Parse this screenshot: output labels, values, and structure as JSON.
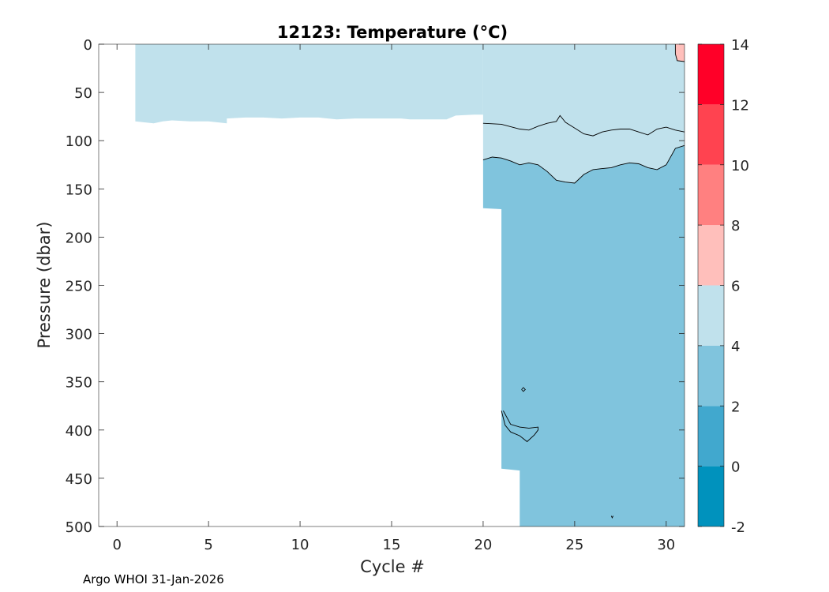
{
  "chart_data": {
    "type": "heatmap",
    "title": "12123:  Temperature (°C)",
    "xlabel": "Cycle #",
    "ylabel": "Pressure (dbar)",
    "xlim": [
      -1,
      31
    ],
    "ylim": [
      0,
      500
    ],
    "y_reversed": true,
    "xticks": [
      0,
      5,
      10,
      15,
      20,
      25,
      30
    ],
    "yticks": [
      0,
      50,
      100,
      150,
      200,
      250,
      300,
      350,
      400,
      450,
      500
    ],
    "colorbar": {
      "ticks": [
        -2,
        0,
        2,
        4,
        6,
        8,
        10,
        12,
        14
      ],
      "levels": [
        {
          "from": -2,
          "to": 0,
          "color": "#0092BD"
        },
        {
          "from": 0,
          "to": 2,
          "color": "#41A8CE"
        },
        {
          "from": 2,
          "to": 4,
          "color": "#80C4DD"
        },
        {
          "from": 4,
          "to": 6,
          "color": "#C0E1EC"
        },
        {
          "from": 6,
          "to": 8,
          "color": "#FFBFBB"
        },
        {
          "from": 8,
          "to": 10,
          "color": "#FF8080"
        },
        {
          "from": 10,
          "to": 12,
          "color": "#FF4350"
        },
        {
          "from": 12,
          "to": 14,
          "color": "#FF0028"
        }
      ]
    },
    "regions": [
      {
        "name": "4-6 band (cycles 1-20)",
        "color": "#C0E1EC",
        "outline": [
          [
            1,
            0
          ],
          [
            20,
            0
          ],
          [
            20,
            73
          ],
          [
            19.5,
            73
          ],
          [
            18.5,
            74
          ],
          [
            18,
            78
          ],
          [
            16,
            78
          ],
          [
            15.5,
            77
          ],
          [
            13,
            77
          ],
          [
            12,
            78
          ],
          [
            11,
            76
          ],
          [
            10,
            76
          ],
          [
            9,
            77
          ],
          [
            8,
            76
          ],
          [
            7,
            76
          ],
          [
            6,
            77
          ],
          [
            6,
            82
          ],
          [
            5,
            80
          ],
          [
            4,
            80
          ],
          [
            3,
            79
          ],
          [
            2.5,
            80
          ],
          [
            2,
            82
          ],
          [
            1,
            80
          ]
        ]
      },
      {
        "name": "4-6 band (cycles 20-31)",
        "color": "#C0E1EC",
        "outline": [
          [
            20,
            0
          ],
          [
            31,
            0
          ],
          [
            31,
            105
          ],
          [
            30.5,
            108
          ],
          [
            30,
            125
          ],
          [
            29.5,
            130
          ],
          [
            29,
            128
          ],
          [
            28.5,
            124
          ],
          [
            28,
            123
          ],
          [
            27.5,
            125
          ],
          [
            27,
            128
          ],
          [
            26.5,
            129
          ],
          [
            26,
            130
          ],
          [
            25.5,
            135
          ],
          [
            25,
            144
          ],
          [
            24.5,
            143
          ],
          [
            24,
            141
          ],
          [
            23.5,
            132
          ],
          [
            23,
            125
          ],
          [
            22.5,
            123
          ],
          [
            22,
            125
          ],
          [
            21.5,
            121
          ],
          [
            21,
            118
          ],
          [
            20.5,
            117
          ],
          [
            20,
            120
          ]
        ]
      },
      {
        "name": "2-4 band (cycles 20-31)",
        "color": "#80C4DD",
        "outline": [
          [
            20,
            120
          ],
          [
            20.5,
            117
          ],
          [
            21,
            118
          ],
          [
            21.5,
            121
          ],
          [
            22,
            125
          ],
          [
            22.5,
            123
          ],
          [
            23,
            125
          ],
          [
            23.5,
            132
          ],
          [
            24,
            141
          ],
          [
            24.5,
            143
          ],
          [
            25,
            144
          ],
          [
            25.5,
            135
          ],
          [
            26,
            130
          ],
          [
            26.5,
            129
          ],
          [
            27,
            128
          ],
          [
            27.5,
            125
          ],
          [
            28,
            123
          ],
          [
            28.5,
            124
          ],
          [
            29,
            128
          ],
          [
            29.5,
            130
          ],
          [
            30,
            125
          ],
          [
            30.5,
            108
          ],
          [
            31,
            105
          ],
          [
            31,
            500
          ],
          [
            22,
            500
          ],
          [
            22,
            442
          ],
          [
            21,
            440
          ],
          [
            21,
            171
          ],
          [
            20,
            170
          ]
        ]
      },
      {
        "name": "6-8 band (top right)",
        "color": "#FFBFBB",
        "outline": [
          [
            30.5,
            0
          ],
          [
            31,
            0
          ],
          [
            31,
            18
          ],
          [
            30.6,
            17
          ],
          [
            30.5,
            10
          ]
        ]
      }
    ],
    "contours": [
      {
        "level": 6,
        "points": [
          [
            30.5,
            0
          ],
          [
            30.5,
            10
          ],
          [
            30.6,
            17
          ],
          [
            31,
            18
          ]
        ]
      },
      {
        "level": 4,
        "points": [
          [
            20,
            82
          ],
          [
            21,
            83
          ],
          [
            22,
            88
          ],
          [
            22.5,
            89
          ],
          [
            23,
            85
          ],
          [
            23.5,
            82
          ],
          [
            24,
            80
          ],
          [
            24.2,
            74
          ],
          [
            24.5,
            81
          ],
          [
            25,
            87
          ],
          [
            25.5,
            93
          ],
          [
            26,
            95
          ],
          [
            26.5,
            91
          ],
          [
            27,
            89
          ],
          [
            27.5,
            88
          ],
          [
            28,
            88
          ],
          [
            28.5,
            91
          ],
          [
            29,
            94
          ],
          [
            29.5,
            88
          ],
          [
            30,
            86
          ],
          [
            30.5,
            89
          ],
          [
            31,
            91
          ]
        ]
      },
      {
        "level": 4,
        "points": [
          [
            20,
            120
          ],
          [
            20.5,
            117
          ],
          [
            21,
            118
          ],
          [
            21.5,
            121
          ],
          [
            22,
            125
          ],
          [
            22.5,
            123
          ],
          [
            23,
            125
          ],
          [
            23.5,
            132
          ],
          [
            24,
            141
          ],
          [
            24.5,
            143
          ],
          [
            25,
            144
          ],
          [
            25.5,
            135
          ],
          [
            26,
            130
          ],
          [
            26.5,
            129
          ],
          [
            27,
            128
          ],
          [
            27.5,
            125
          ],
          [
            28,
            123
          ],
          [
            28.5,
            124
          ],
          [
            29,
            128
          ],
          [
            29.5,
            130
          ],
          [
            30,
            125
          ],
          [
            30.5,
            108
          ],
          [
            31,
            105
          ]
        ]
      },
      {
        "level": 4,
        "points": [
          [
            21,
            380
          ],
          [
            21.2,
            395
          ],
          [
            21.5,
            402
          ],
          [
            22,
            406
          ],
          [
            22.4,
            412
          ],
          [
            22.8,
            405
          ],
          [
            23,
            400
          ],
          [
            23,
            397
          ],
          [
            22.5,
            398
          ],
          [
            22,
            397
          ],
          [
            21.5,
            394
          ],
          [
            21.3,
            387
          ],
          [
            21.1,
            380
          ]
        ]
      },
      {
        "level": 4,
        "points": [
          [
            22.1,
            358
          ],
          [
            22.2,
            356
          ],
          [
            22.3,
            358
          ],
          [
            22.2,
            360
          ],
          [
            22.1,
            358
          ]
        ]
      },
      {
        "level": 4,
        "points": [
          [
            27,
            489
          ],
          [
            27.05,
            491
          ],
          [
            27.1,
            489
          ]
        ]
      }
    ]
  },
  "footer": {
    "credit": "Argo WHOI 31-Jan-2026"
  }
}
